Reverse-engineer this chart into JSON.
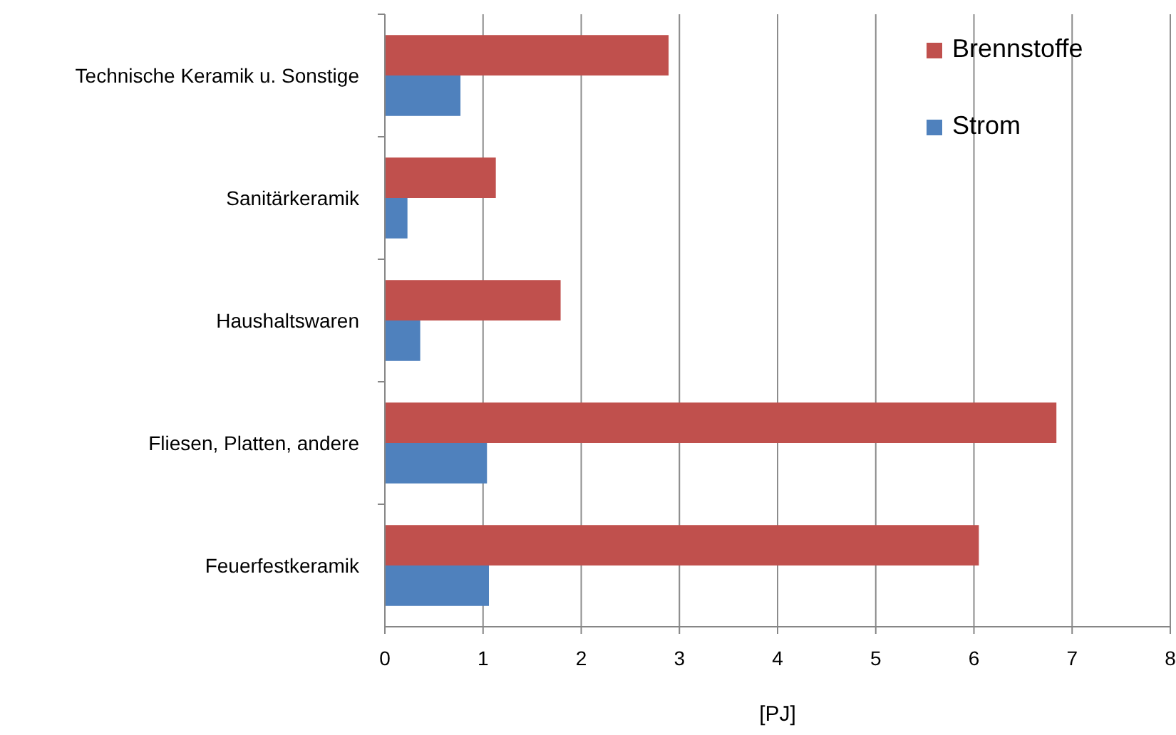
{
  "chart_data": {
    "type": "bar",
    "orientation": "horizontal",
    "xlabel": "[PJ]",
    "categories": [
      "Technische Keramik u. Sonstige",
      "Sanitärkeramik",
      "Haushaltswaren",
      "Fliesen, Platten, andere",
      "Feuerfestkeramik"
    ],
    "series": [
      {
        "name": "Brennstoffe",
        "color": "#c0504d",
        "values": [
          2.89,
          1.13,
          1.79,
          6.84,
          6.05
        ]
      },
      {
        "name": "Strom",
        "color": "#4f81bd",
        "values": [
          0.77,
          0.23,
          0.36,
          1.04,
          1.06
        ]
      }
    ],
    "xlim": [
      0,
      8
    ],
    "xticks": [
      0,
      1,
      2,
      3,
      4,
      5,
      6,
      7,
      8
    ],
    "grid": "x",
    "legend": "top right"
  }
}
